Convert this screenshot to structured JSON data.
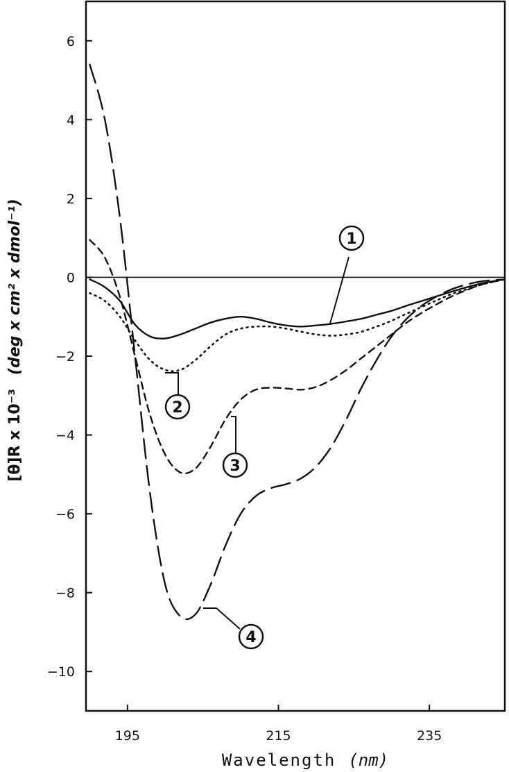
{
  "chart_data": {
    "type": "line",
    "title": "",
    "xlabel": "Wavelength",
    "xlabel_unit": "(nm)",
    "ylabel": "[θ]R x 10⁻³",
    "ylabel_unit": "(deg x cm² x dmol⁻¹)",
    "xlim": [
      189.5,
      245
    ],
    "ylim": [
      -11,
      7
    ],
    "xticks": [
      195,
      215,
      235
    ],
    "xtick_labels": [
      "195",
      "215",
      "235"
    ],
    "yticks": [
      6,
      4,
      2,
      0,
      -2,
      -4,
      -6,
      -8,
      -10
    ],
    "ytick_labels": [
      "6",
      "4",
      "2",
      "0",
      "-2",
      "-4",
      "-6",
      "-8",
      "-10"
    ],
    "zero_line": true,
    "grid": false,
    "legend": "none",
    "series": [
      {
        "name": "1",
        "style": "solid",
        "x": [
          190,
          192,
          194,
          196,
          198,
          200,
          202,
          204,
          206,
          208,
          210,
          212,
          214,
          216,
          218,
          220,
          222,
          224,
          226,
          228,
          230,
          232,
          234,
          236,
          238,
          240,
          242,
          245
        ],
        "y": [
          -0.05,
          -0.25,
          -0.6,
          -1.2,
          -1.5,
          -1.55,
          -1.45,
          -1.3,
          -1.15,
          -1.05,
          -1.0,
          -1.05,
          -1.15,
          -1.22,
          -1.25,
          -1.22,
          -1.18,
          -1.12,
          -1.05,
          -0.95,
          -0.85,
          -0.72,
          -0.6,
          -0.48,
          -0.36,
          -0.25,
          -0.15,
          -0.05
        ]
      },
      {
        "name": "2",
        "style": "dotted",
        "x": [
          190,
          192,
          194,
          196,
          198,
          200,
          202,
          204,
          206,
          208,
          210,
          212,
          214,
          216,
          218,
          220,
          222,
          224,
          226,
          228,
          230,
          232,
          234,
          236,
          238,
          240,
          242,
          245
        ],
        "y": [
          -0.4,
          -0.6,
          -1.0,
          -1.6,
          -2.1,
          -2.35,
          -2.35,
          -2.1,
          -1.75,
          -1.45,
          -1.3,
          -1.25,
          -1.25,
          -1.3,
          -1.38,
          -1.45,
          -1.48,
          -1.45,
          -1.38,
          -1.25,
          -1.1,
          -0.92,
          -0.75,
          -0.58,
          -0.42,
          -0.3,
          -0.18,
          -0.05
        ]
      },
      {
        "name": "3",
        "style": "dashed",
        "x": [
          190,
          192,
          194,
          196,
          198,
          200,
          202,
          204,
          206,
          208,
          210,
          212,
          214,
          216,
          218,
          220,
          222,
          224,
          226,
          228,
          230,
          232,
          234,
          236,
          238,
          240,
          242,
          245
        ],
        "y": [
          0.95,
          0.5,
          -0.5,
          -2.0,
          -3.5,
          -4.5,
          -4.95,
          -4.85,
          -4.3,
          -3.6,
          -3.1,
          -2.85,
          -2.8,
          -2.82,
          -2.85,
          -2.78,
          -2.6,
          -2.35,
          -2.05,
          -1.75,
          -1.45,
          -1.15,
          -0.9,
          -0.68,
          -0.48,
          -0.32,
          -0.18,
          -0.05
        ]
      },
      {
        "name": "4",
        "style": "long-dashed",
        "x": [
          190,
          192,
          194,
          196,
          198,
          200,
          202,
          204,
          206,
          208,
          210,
          212,
          214,
          216,
          218,
          220,
          222,
          224,
          226,
          228,
          230,
          232,
          234,
          236,
          238,
          240,
          242,
          245
        ],
        "y": [
          5.4,
          4.0,
          1.5,
          -2.0,
          -5.5,
          -7.8,
          -8.6,
          -8.55,
          -7.8,
          -6.8,
          -6.0,
          -5.55,
          -5.35,
          -5.25,
          -5.1,
          -4.8,
          -4.3,
          -3.6,
          -2.8,
          -2.1,
          -1.5,
          -1.05,
          -0.72,
          -0.48,
          -0.3,
          -0.18,
          -0.1,
          -0.05
        ]
      }
    ],
    "annotations": [
      "1",
      "2",
      "3",
      "4"
    ]
  }
}
